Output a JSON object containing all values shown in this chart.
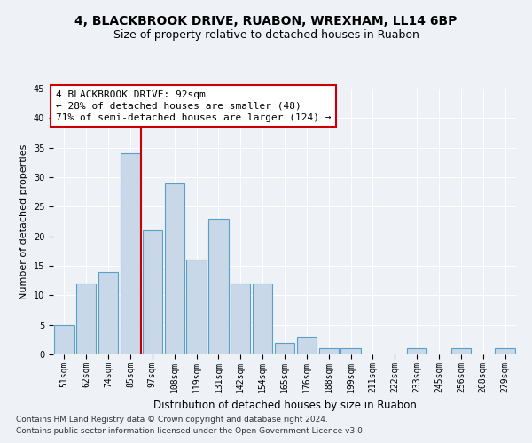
{
  "title1": "4, BLACKBROOK DRIVE, RUABON, WREXHAM, LL14 6BP",
  "title2": "Size of property relative to detached houses in Ruabon",
  "xlabel": "Distribution of detached houses by size in Ruabon",
  "ylabel": "Number of detached properties",
  "categories": [
    "51sqm",
    "62sqm",
    "74sqm",
    "85sqm",
    "97sqm",
    "108sqm",
    "119sqm",
    "131sqm",
    "142sqm",
    "154sqm",
    "165sqm",
    "176sqm",
    "188sqm",
    "199sqm",
    "211sqm",
    "222sqm",
    "233sqm",
    "245sqm",
    "256sqm",
    "268sqm",
    "279sqm"
  ],
  "values": [
    5,
    12,
    14,
    34,
    21,
    29,
    16,
    23,
    12,
    12,
    2,
    3,
    1,
    1,
    0,
    0,
    1,
    0,
    1,
    0,
    1
  ],
  "bar_color": "#c8d8e8",
  "bar_edge_color": "#5a9fc8",
  "vline_color": "#cc0000",
  "vline_pos": 3.5,
  "annotation_text": "4 BLACKBROOK DRIVE: 92sqm\n← 28% of detached houses are smaller (48)\n71% of semi-detached houses are larger (124) →",
  "annotation_box_color": "#ffffff",
  "annotation_box_edge": "#cc0000",
  "ylim": [
    0,
    45
  ],
  "yticks": [
    0,
    5,
    10,
    15,
    20,
    25,
    30,
    35,
    40,
    45
  ],
  "footnote1": "Contains HM Land Registry data © Crown copyright and database right 2024.",
  "footnote2": "Contains public sector information licensed under the Open Government Licence v3.0.",
  "background_color": "#eef2f7",
  "grid_color": "#ffffff",
  "title1_fontsize": 10,
  "title2_fontsize": 9,
  "xlabel_fontsize": 8.5,
  "ylabel_fontsize": 8,
  "tick_fontsize": 7,
  "annotation_fontsize": 8,
  "footnote_fontsize": 6.5
}
